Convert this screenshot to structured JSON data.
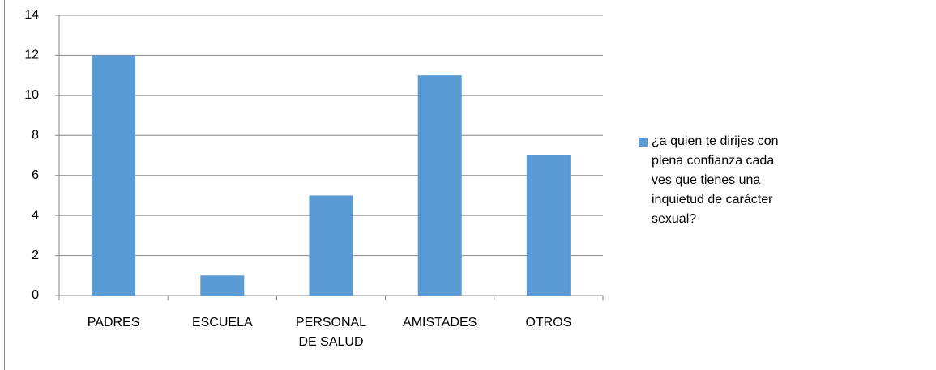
{
  "chart_data": {
    "type": "bar",
    "categories": [
      "PADRES",
      "ESCUELA",
      "PERSONAL DE SALUD",
      "AMISTADES",
      "OTROS"
    ],
    "series": [
      {
        "name": "¿a quien te dirijes con plena confianza cada ves que tienes una inquietud de carácter sexual?",
        "color": "#5b9bd5",
        "values": [
          12,
          1,
          5,
          11,
          7
        ]
      }
    ],
    "ylim": [
      0,
      14
    ],
    "yticks": [
      0,
      2,
      4,
      6,
      8,
      10,
      12,
      14
    ],
    "grid": true,
    "legend": "right"
  }
}
